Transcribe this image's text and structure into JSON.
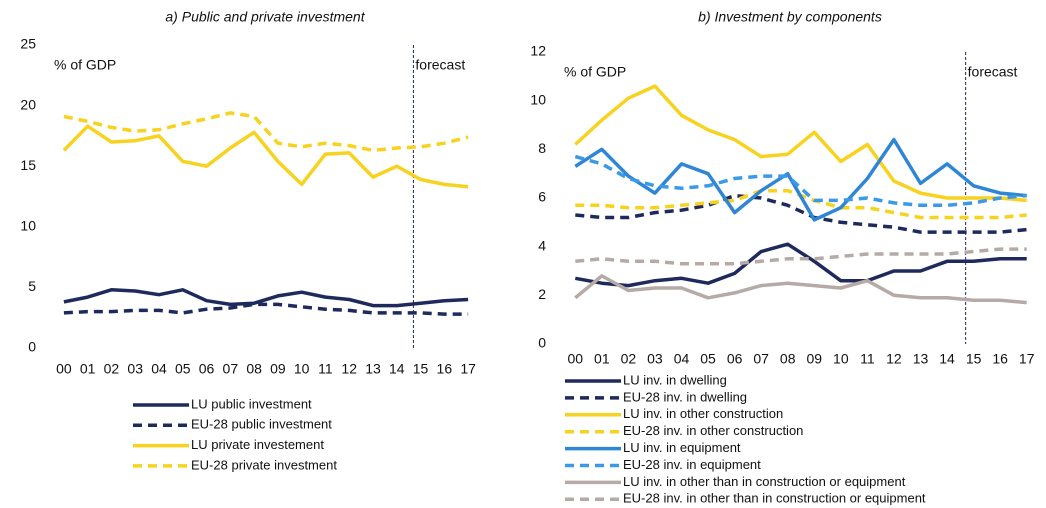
{
  "chart_data": [
    {
      "type": "line",
      "title": "a) Public and private investment",
      "y_label": "% of GDP",
      "annotation": "forecast",
      "categories": [
        "00",
        "01",
        "02",
        "03",
        "04",
        "05",
        "06",
        "07",
        "08",
        "09",
        "10",
        "11",
        "12",
        "13",
        "14",
        "15",
        "16",
        "17"
      ],
      "ylim": [
        0,
        25
      ],
      "yticks": [
        0,
        5,
        10,
        15,
        20,
        25
      ],
      "grid": false,
      "series": [
        {
          "name": "LU public investment",
          "color": "#1f2a5c",
          "dash": false,
          "values": [
            3.8,
            4.2,
            4.8,
            4.7,
            4.4,
            4.8,
            3.9,
            3.6,
            3.7,
            4.3,
            4.6,
            4.2,
            4.0,
            3.5,
            3.5,
            3.7,
            3.9,
            4.0
          ]
        },
        {
          "name": "EU-28 public investment",
          "color": "#1f2a5c",
          "dash": true,
          "values": [
            2.9,
            3.0,
            3.0,
            3.1,
            3.1,
            2.9,
            3.2,
            3.3,
            3.6,
            3.6,
            3.4,
            3.2,
            3.1,
            2.9,
            2.9,
            2.9,
            2.8,
            2.8
          ]
        },
        {
          "name": "LU private investement",
          "color": "#f7d21e",
          "dash": false,
          "values": [
            16.3,
            18.3,
            17.0,
            17.1,
            17.5,
            15.4,
            15.0,
            16.5,
            17.8,
            15.4,
            13.5,
            16.0,
            16.1,
            14.1,
            15.0,
            13.9,
            13.5,
            13.3
          ]
        },
        {
          "name": "EU-28 private investment",
          "color": "#f7d21e",
          "dash": true,
          "values": [
            19.1,
            18.7,
            18.2,
            17.9,
            18.0,
            18.5,
            18.9,
            19.4,
            19.1,
            16.9,
            16.6,
            16.9,
            16.7,
            16.3,
            16.5,
            16.6,
            16.9,
            17.4
          ]
        }
      ]
    },
    {
      "type": "line",
      "title": "b) Investment by components",
      "y_label": "% of GDP",
      "annotation": "forecast",
      "categories": [
        "00",
        "01",
        "02",
        "03",
        "04",
        "05",
        "06",
        "07",
        "08",
        "09",
        "10",
        "11",
        "12",
        "13",
        "14",
        "15",
        "16",
        "17"
      ],
      "ylim": [
        0,
        12
      ],
      "yticks": [
        0,
        2,
        4,
        6,
        8,
        10,
        12
      ],
      "grid": false,
      "series": [
        {
          "name": "LU inv. in dwelling",
          "color": "#1f2a5c",
          "dash": false,
          "values": [
            2.7,
            2.5,
            2.4,
            2.6,
            2.7,
            2.5,
            2.9,
            3.8,
            4.1,
            3.4,
            2.6,
            2.6,
            3.0,
            3.0,
            3.4,
            3.4,
            3.5,
            3.5
          ]
        },
        {
          "name": "EU-28 inv. in dwelling",
          "color": "#1f2a5c",
          "dash": true,
          "values": [
            5.3,
            5.2,
            5.2,
            5.4,
            5.5,
            5.7,
            6.1,
            6.0,
            5.7,
            5.2,
            5.0,
            4.9,
            4.8,
            4.6,
            4.6,
            4.6,
            4.6,
            4.7
          ]
        },
        {
          "name": "LU inv. in other construction",
          "color": "#f7d21e",
          "dash": false,
          "values": [
            8.2,
            9.2,
            10.1,
            10.6,
            9.4,
            8.8,
            8.4,
            7.7,
            7.8,
            8.7,
            7.5,
            8.2,
            6.7,
            6.2,
            6.0,
            6.0,
            6.0,
            5.9
          ]
        },
        {
          "name": "EU-28 inv. in other construction",
          "color": "#f7d21e",
          "dash": true,
          "values": [
            5.7,
            5.7,
            5.6,
            5.6,
            5.7,
            5.8,
            5.9,
            6.3,
            6.3,
            5.9,
            5.6,
            5.6,
            5.4,
            5.2,
            5.2,
            5.2,
            5.2,
            5.3
          ]
        },
        {
          "name": "LU inv. in equipment",
          "color": "#2e86d4",
          "dash": false,
          "values": [
            7.3,
            8.0,
            6.9,
            6.2,
            7.4,
            7.0,
            5.4,
            6.3,
            7.0,
            5.1,
            5.6,
            6.8,
            8.4,
            6.6,
            7.4,
            6.5,
            6.2,
            6.1
          ]
        },
        {
          "name": "EU-28 inv. in equipment",
          "color": "#3a9ae8",
          "dash": true,
          "values": [
            7.7,
            7.4,
            6.8,
            6.5,
            6.4,
            6.5,
            6.8,
            6.9,
            6.9,
            5.9,
            5.9,
            6.0,
            5.8,
            5.7,
            5.7,
            5.8,
            6.0,
            6.1
          ]
        },
        {
          "name": "LU inv. in other than in construction or equipment",
          "color": "#b5aaa5",
          "dash": false,
          "values": [
            1.9,
            2.8,
            2.2,
            2.3,
            2.3,
            1.9,
            2.1,
            2.4,
            2.5,
            2.4,
            2.3,
            2.6,
            2.0,
            1.9,
            1.9,
            1.8,
            1.8,
            1.7
          ]
        },
        {
          "name": "EU-28 inv. in other than in construction or equipment",
          "color": "#b5aaa5",
          "dash": true,
          "values": [
            3.4,
            3.5,
            3.4,
            3.4,
            3.3,
            3.3,
            3.3,
            3.4,
            3.5,
            3.5,
            3.6,
            3.7,
            3.7,
            3.7,
            3.7,
            3.8,
            3.9,
            3.9
          ]
        }
      ]
    }
  ]
}
